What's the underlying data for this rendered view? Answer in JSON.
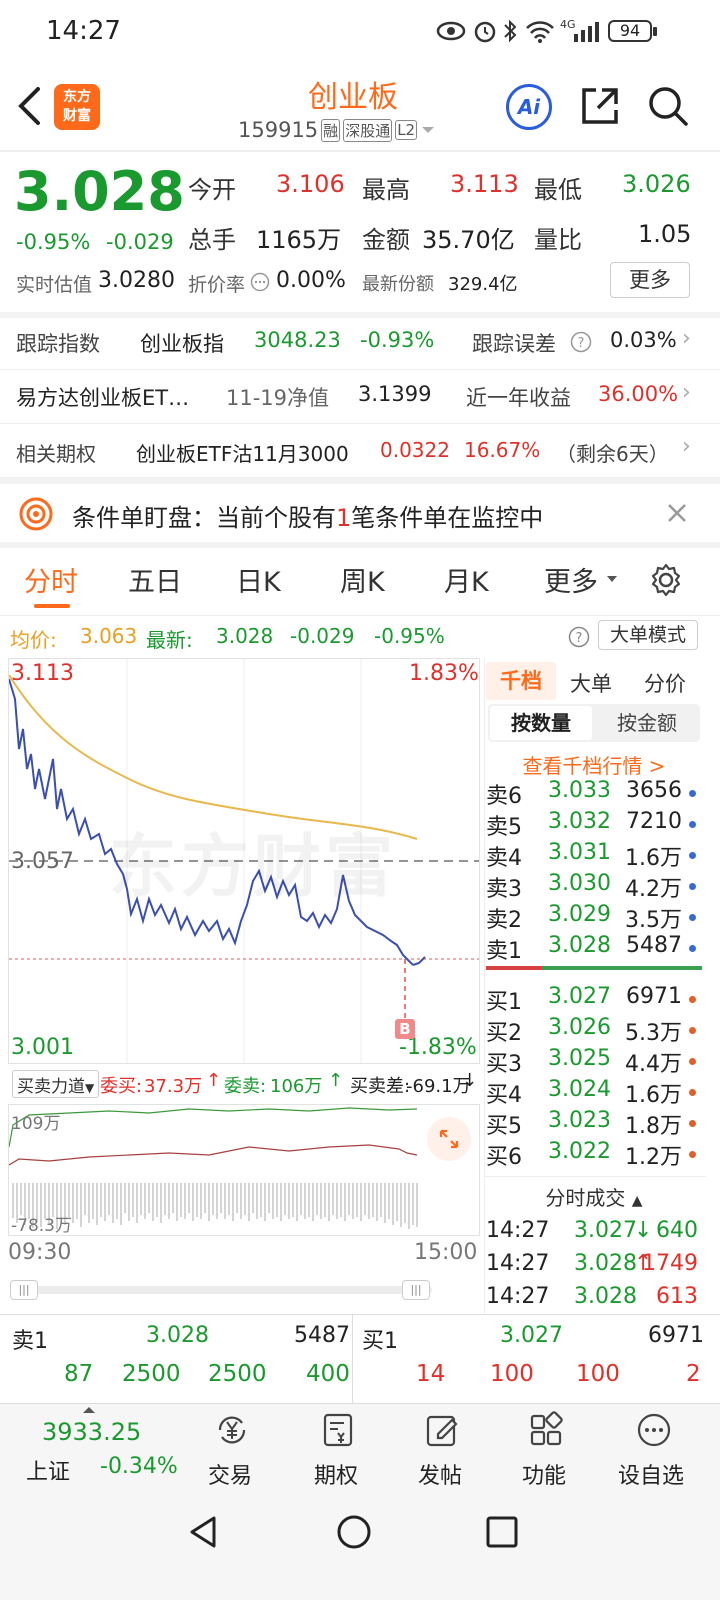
{
  "status_bar": {
    "time": "14:27",
    "battery": "94",
    "network": "4G"
  },
  "header": {
    "title": "创业板",
    "code": "159915",
    "badges": [
      "融",
      "深股通",
      "L2"
    ],
    "logo_line1": "东方",
    "logo_line2": "财富",
    "ai_label": "Ai"
  },
  "quote": {
    "price": "3.028",
    "change_pct": "-0.95%",
    "change": "-0.029",
    "open_label": "今开",
    "open": "3.106",
    "high_label": "最高",
    "high": "3.113",
    "low_label": "最低",
    "low": "3.026",
    "volume_label": "总手",
    "volume": "1165万",
    "amount_label": "金额",
    "amount": "35.70亿",
    "ratio_label": "量比",
    "ratio": "1.05",
    "iopv_label": "实时估值",
    "iopv": "3.0280",
    "discount_label": "折价率",
    "discount": "0.00%",
    "shares_label": "最新份额",
    "shares": "329.4亿",
    "more_button": "更多"
  },
  "info_rows": {
    "track_label": "跟踪指数",
    "track_index": "创业板指",
    "track_value": "3048.23",
    "track_pct": "-0.93%",
    "error_label": "跟踪误差",
    "error_value": "0.03%",
    "fund_name": "易方达创业板ET…",
    "nav_label": "11-19净值",
    "nav_value": "3.1399",
    "return_label": "近一年收益",
    "return_value": "36.00%",
    "option_label": "相关期权",
    "option_name": "创业板ETF沽11月3000",
    "option_price": "0.0322",
    "option_pct": "16.67%",
    "option_days": "（剩余6天）"
  },
  "alert": {
    "text_prefix": "条件单盯盘：当前个股有",
    "count": "1",
    "text_suffix": "笔条件单在监控中"
  },
  "tabs": [
    "分时",
    "五日",
    "日K",
    "周K",
    "月K",
    "更多"
  ],
  "chart_header": {
    "avg_label": "均价:",
    "avg": "3.063",
    "latest_label": "最新:",
    "latest": "3.028",
    "latest_change": "-0.029",
    "latest_pct": "-0.95%",
    "big_order_mode": "大单模式"
  },
  "chart_labels": {
    "top_price": "3.113",
    "top_pct": "1.83%",
    "mid_price": "3.057",
    "bottom_price": "3.001",
    "bottom_pct": "-1.83%",
    "watermark": "东方财富",
    "trade_marker": "B",
    "time_start": "09:30",
    "time_end": "15:00"
  },
  "power": {
    "selector": "买卖力道",
    "buy_label": "委买:",
    "buy_value": "37.3万",
    "sell_label": "委卖:",
    "sell_value": "106万",
    "diff_label": "买卖差:",
    "diff_value": "-69.1万",
    "top_axis": "109万",
    "bottom_axis": "-78.3万"
  },
  "orderbook": {
    "tabs": [
      "千档",
      "大单",
      "分价"
    ],
    "mode_tabs": [
      "按数量",
      "按金额"
    ],
    "link": "查看千档行情 >",
    "asks": [
      {
        "label": "卖6",
        "price": "3.033",
        "qty": "3656"
      },
      {
        "label": "卖5",
        "price": "3.032",
        "qty": "7210"
      },
      {
        "label": "卖4",
        "price": "3.031",
        "qty": "1.6万"
      },
      {
        "label": "卖3",
        "price": "3.030",
        "qty": "4.2万"
      },
      {
        "label": "卖2",
        "price": "3.029",
        "qty": "3.5万"
      },
      {
        "label": "卖1",
        "price": "3.028",
        "qty": "5487"
      }
    ],
    "bids": [
      {
        "label": "买1",
        "price": "3.027",
        "qty": "6971"
      },
      {
        "label": "买2",
        "price": "3.026",
        "qty": "5.3万"
      },
      {
        "label": "买3",
        "price": "3.025",
        "qty": "4.4万"
      },
      {
        "label": "买4",
        "price": "3.024",
        "qty": "1.6万"
      },
      {
        "label": "买5",
        "price": "3.023",
        "qty": "1.8万"
      },
      {
        "label": "买6",
        "price": "3.022",
        "qty": "1.2万"
      }
    ],
    "ticks_title": "分时成交",
    "ticks": [
      {
        "time": "14:27",
        "price": "3.027",
        "arrow": "↓",
        "qty": "640"
      },
      {
        "time": "14:27",
        "price": "3.028",
        "arrow": "↑",
        "qty": "1749"
      },
      {
        "time": "14:27",
        "price": "3.028",
        "arrow": "",
        "qty": "613"
      }
    ]
  },
  "level1": {
    "sell_label": "卖1",
    "sell_price": "3.028",
    "sell_qty": "5487",
    "buy_label": "买1",
    "buy_price": "3.027",
    "buy_qty": "6971",
    "sell_orders": [
      "87",
      "2500",
      "2500",
      "400"
    ],
    "buy_orders": [
      "14",
      "100",
      "100",
      "2"
    ]
  },
  "bottom_nav": {
    "index_value": "3933.25",
    "index_name": "上证",
    "index_pct": "-0.34%",
    "items": [
      "交易",
      "期权",
      "发帖",
      "功能",
      "设自选"
    ]
  },
  "colors": {
    "brand": "#ff6a1a",
    "up": "#e0302a",
    "down": "#1a9a2e",
    "avg_line": "#e8b84a",
    "price_line": "#3b4fb0"
  }
}
